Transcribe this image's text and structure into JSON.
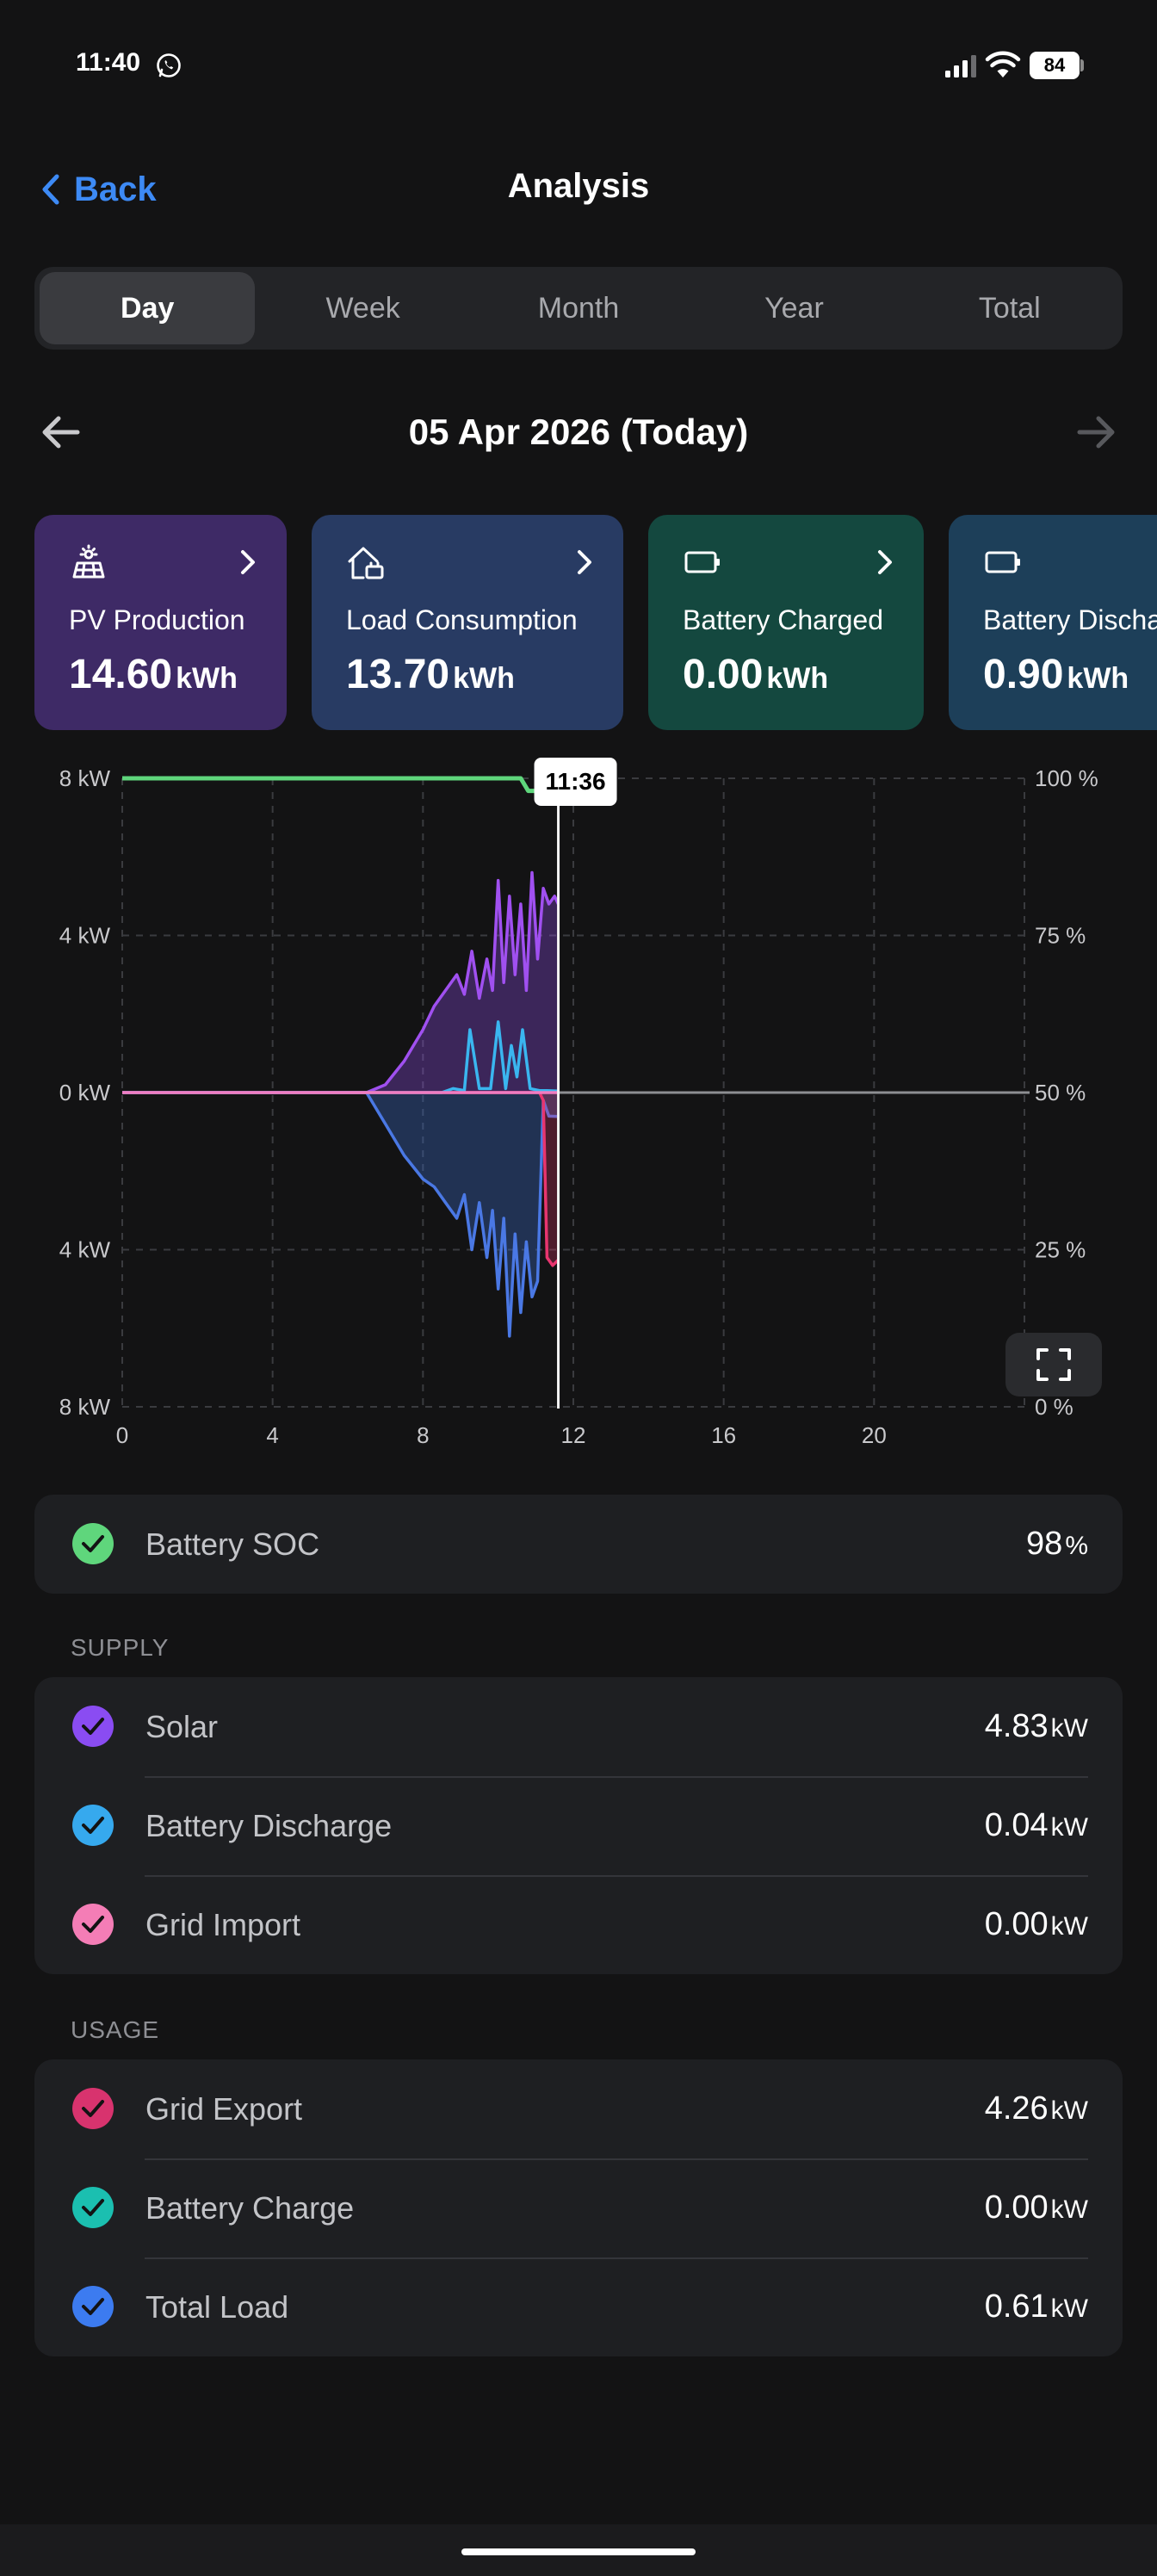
{
  "status_bar": {
    "time": "11:40",
    "battery": "84"
  },
  "nav": {
    "back_label": "Back",
    "title": "Analysis"
  },
  "tabs": [
    {
      "label": "Day",
      "active": true
    },
    {
      "label": "Week"
    },
    {
      "label": "Month"
    },
    {
      "label": "Year"
    },
    {
      "label": "Total"
    }
  ],
  "date": {
    "label": "05 Apr 2026 (Today)"
  },
  "cards": [
    {
      "title": "PV Production",
      "value": "14.60",
      "unit": "kWh",
      "icon": "solar-panel-icon",
      "color": "#3e2a66"
    },
    {
      "title": "Load Consumption",
      "value": "13.70",
      "unit": "kWh",
      "icon": "home-load-icon",
      "color": "#283b63"
    },
    {
      "title": "Battery Charged",
      "value": "0.00",
      "unit": "kWh",
      "icon": "battery-icon",
      "color": "#14483f"
    },
    {
      "title": "Battery Discha",
      "value": "0.90",
      "unit": "kWh",
      "icon": "battery-icon",
      "color": "#1d3f59"
    }
  ],
  "chart_data": {
    "type": "area",
    "cursor_time": "11:36",
    "cursor_hour": 11.6,
    "left_axis_ticks": [
      "8 kW",
      "4 kW",
      "0 kW",
      "4 kW",
      "8 kW"
    ],
    "right_axis_ticks": [
      "100 %",
      "75 %",
      "50 %",
      "25 %",
      "0 %"
    ],
    "x_ticks": [
      "0",
      "4",
      "8",
      "12",
      "16",
      "20"
    ],
    "xlim": [
      0,
      24
    ],
    "ylim_kw": [
      -8,
      8
    ],
    "ylim_soc": [
      0,
      100
    ],
    "grid": true,
    "series": [
      {
        "name": "Battery SOC",
        "axis": "right",
        "color": "#5fd67c",
        "x": [
          0,
          10.6,
          10.8,
          11.0,
          11.6
        ],
        "y": [
          100,
          100,
          98,
          98,
          98
        ]
      },
      {
        "name": "Solar",
        "axis": "left",
        "color": "#a050f0",
        "x": [
          0,
          6.5,
          7.0,
          7.5,
          8.0,
          8.3,
          8.6,
          8.9,
          9.1,
          9.3,
          9.5,
          9.7,
          9.85,
          10.0,
          10.15,
          10.3,
          10.45,
          10.6,
          10.75,
          10.9,
          11.05,
          11.2,
          11.35,
          11.5,
          11.6
        ],
        "y": [
          0,
          0,
          0.2,
          0.8,
          1.6,
          2.2,
          2.6,
          3.0,
          2.5,
          3.6,
          2.4,
          3.4,
          2.6,
          5.4,
          2.8,
          5.0,
          3.0,
          4.8,
          2.6,
          5.6,
          3.4,
          5.2,
          4.8,
          5.0,
          4.8
        ]
      },
      {
        "name": "Battery Discharge",
        "axis": "left",
        "color": "#3ab6ef",
        "x": [
          0,
          8.5,
          8.8,
          9.1,
          9.25,
          9.5,
          9.8,
          10.0,
          10.2,
          10.35,
          10.5,
          10.65,
          10.85,
          11.1,
          11.3,
          11.6
        ],
        "y": [
          0,
          0,
          0.1,
          0.05,
          1.6,
          0.1,
          0.1,
          1.8,
          0.1,
          1.2,
          0.4,
          1.6,
          0.1,
          0.05,
          0.05,
          0.04
        ]
      },
      {
        "name": "Grid Import",
        "axis": "left",
        "color": "#f07cc0",
        "x": [
          0,
          11.6
        ],
        "y": [
          0,
          0
        ]
      },
      {
        "name": "Grid Export",
        "axis": "left",
        "color": "#e8356f",
        "x": [
          0,
          11.1,
          11.2,
          11.3,
          11.45,
          11.6
        ],
        "y": [
          0,
          0,
          -0.2,
          -4.2,
          -4.4,
          -4.26
        ]
      },
      {
        "name": "Total Load",
        "axis": "left",
        "color": "#4a78e4",
        "x": [
          0,
          6.5,
          7.0,
          7.5,
          8.0,
          8.3,
          8.6,
          8.9,
          9.1,
          9.3,
          9.5,
          9.7,
          9.85,
          10.0,
          10.15,
          10.3,
          10.45,
          10.6,
          10.75,
          10.9,
          11.05,
          11.2,
          11.35,
          11.6
        ],
        "y": [
          0,
          0,
          -0.8,
          -1.6,
          -2.2,
          -2.4,
          -2.8,
          -3.2,
          -2.6,
          -4.0,
          -2.8,
          -4.2,
          -3.0,
          -5.0,
          -3.2,
          -6.2,
          -3.6,
          -5.6,
          -3.8,
          -5.2,
          -4.8,
          -0.2,
          -0.6,
          -0.61
        ]
      }
    ]
  },
  "soc": {
    "label": "Battery SOC",
    "value": "98",
    "unit": "%",
    "color": "#5fd67c"
  },
  "supply": {
    "heading": "SUPPLY",
    "items": [
      {
        "label": "Solar",
        "value": "4.83",
        "unit": "kW",
        "color": "#8a4cf2"
      },
      {
        "label": "Battery Discharge",
        "value": "0.04",
        "unit": "kW",
        "color": "#36a9ee"
      },
      {
        "label": "Grid Import",
        "value": "0.00",
        "unit": "kW",
        "color": "#f47db6"
      }
    ]
  },
  "usage": {
    "heading": "USAGE",
    "items": [
      {
        "label": "Grid Export",
        "value": "4.26",
        "unit": "kW",
        "color": "#d8336e"
      },
      {
        "label": "Battery Charge",
        "value": "0.00",
        "unit": "kW",
        "color": "#1bbfb0"
      },
      {
        "label": "Total Load",
        "value": "0.61",
        "unit": "kW",
        "color": "#3c7bf0"
      }
    ]
  }
}
